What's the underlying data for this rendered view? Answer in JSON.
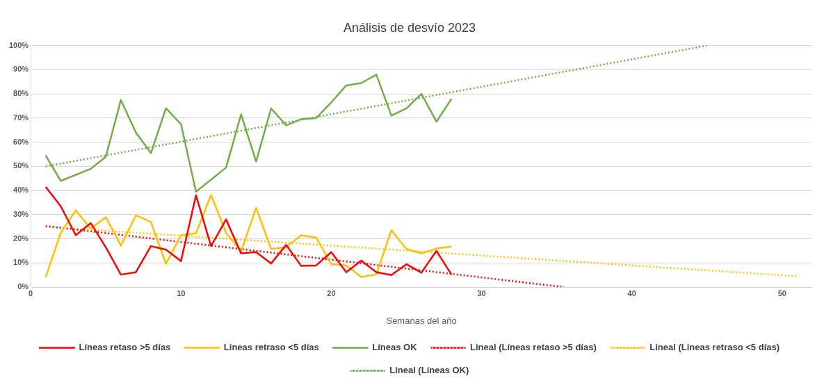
{
  "chart_data": {
    "type": "line",
    "title": "Análisis de desvío 2023",
    "xlabel": "Semanas del año",
    "x": [
      1,
      2,
      3,
      4,
      5,
      6,
      7,
      8,
      9,
      10,
      11,
      12,
      13,
      14,
      15,
      16,
      17,
      18,
      19,
      20,
      21,
      22,
      23,
      24,
      25,
      26,
      27,
      28
    ],
    "xlim": [
      0,
      52
    ],
    "xticks": [
      0,
      10,
      20,
      30,
      40,
      50
    ],
    "ylim": [
      0,
      100
    ],
    "yticks": [
      {
        "value": 0,
        "label": "0%"
      },
      {
        "value": 10,
        "label": "10%"
      },
      {
        "value": 20,
        "label": "20%"
      },
      {
        "value": 30,
        "label": "30%"
      },
      {
        "value": 40,
        "label": "40%"
      },
      {
        "value": 50,
        "label": "50%"
      },
      {
        "value": 60,
        "label": "60%"
      },
      {
        "value": 70,
        "label": "70%"
      },
      {
        "value": 80,
        "label": "80%"
      },
      {
        "value": 90,
        "label": "90%"
      },
      {
        "value": 100,
        "label": "100%"
      }
    ],
    "grid": "y",
    "legend": "bottom",
    "marker": "none",
    "series": [
      {
        "name": "Líneas retaso >5 días",
        "color": "#ff0000",
        "values": [
          41.5,
          33.5,
          21.5,
          26.5,
          16.5,
          5.2,
          6.2,
          17,
          15.5,
          10.8,
          38,
          17,
          28,
          14,
          14.5,
          9.8,
          17.5,
          8.8,
          9,
          14.5,
          6.2,
          11,
          6.2,
          5,
          9.5,
          6,
          15,
          5.2
        ]
      },
      {
        "name": "Lineas retraso <5 días",
        "color": "#ffc000",
        "values": [
          4.2,
          22.5,
          31.8,
          24.2,
          29,
          17.2,
          29.7,
          27,
          9.7,
          21.5,
          22.3,
          38.2,
          22.5,
          14.8,
          32.8,
          15.8,
          16.5,
          21.5,
          20.5,
          9.5,
          9,
          4.2,
          5.2,
          23.5,
          15.8,
          14,
          16,
          16.8
        ]
      },
      {
        "name": "Líneas OK",
        "color": "#70ad47",
        "values": [
          54.5,
          44,
          46.5,
          49,
          54,
          77.5,
          64,
          55.5,
          74,
          67.5,
          39.5,
          44.5,
          49.5,
          71.5,
          52,
          74,
          67,
          69.5,
          70,
          76.5,
          83.5,
          84.5,
          88,
          71,
          74,
          80,
          68.5,
          78
        ]
      },
      {
        "name": "Lineal (Líneas retaso >5 días)",
        "color": "#ff0000",
        "line_style": "dotted",
        "x": [
          1,
          35.5
        ],
        "values": [
          25.3,
          0
        ]
      },
      {
        "name": "Lineal (Lineas retraso <5 días)",
        "color": "#ffc000",
        "line_style": "dotted",
        "x": [
          1,
          51
        ],
        "values": [
          25,
          4.5
        ]
      },
      {
        "name": "Lineal (Líneas OK)",
        "color": "#70ad47",
        "line_style": "dotted",
        "x": [
          1,
          45
        ],
        "values": [
          50,
          100
        ]
      }
    ]
  }
}
